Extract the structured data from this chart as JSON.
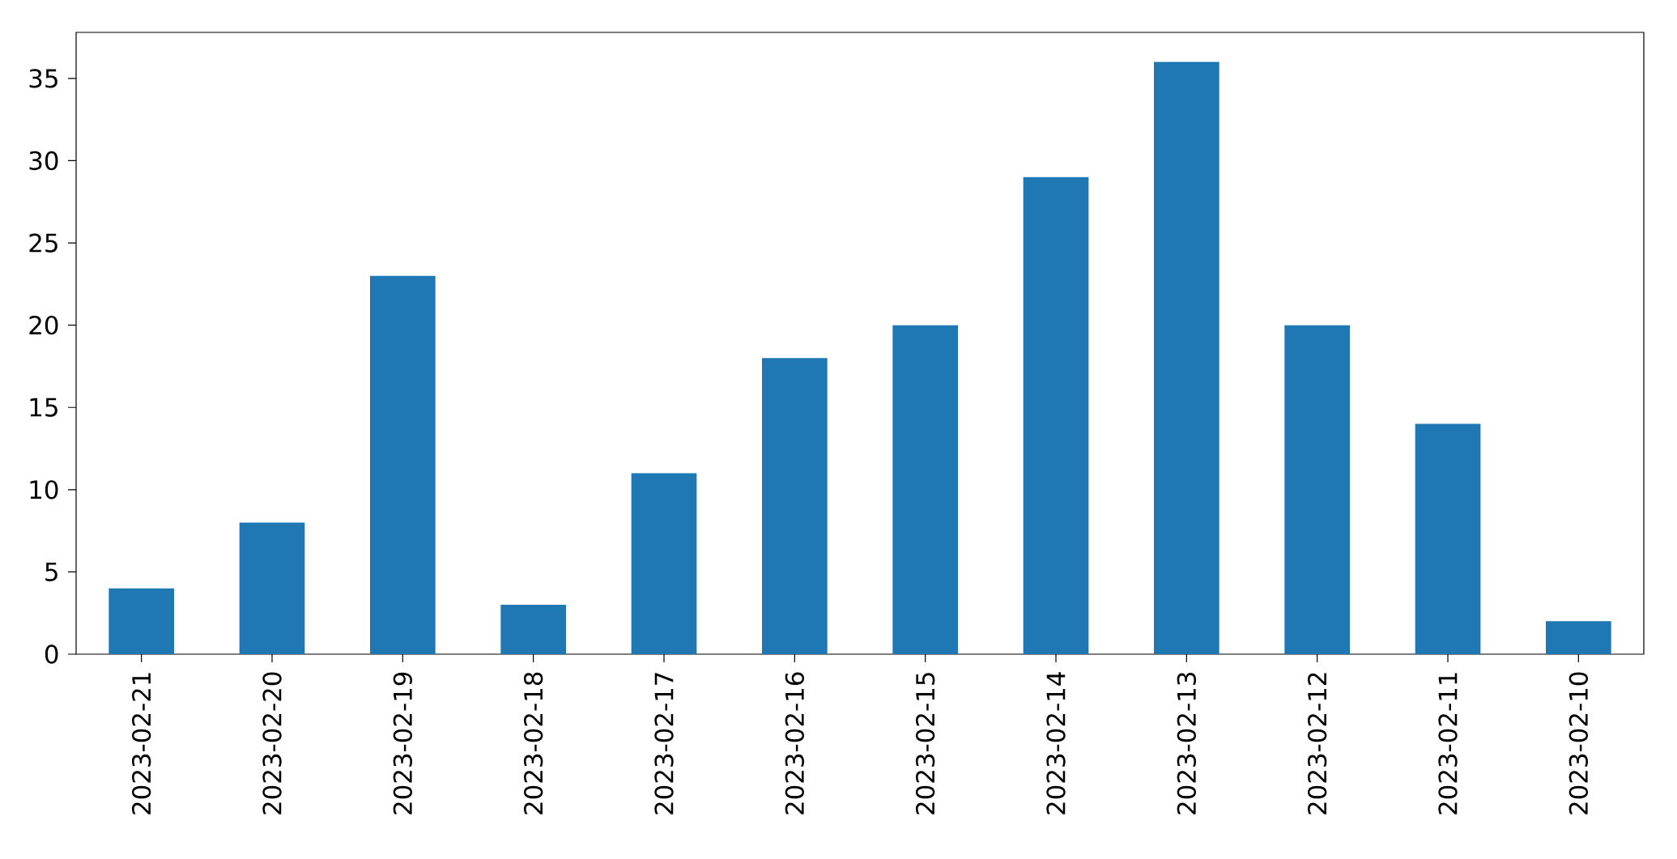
{
  "chart_data": {
    "type": "bar",
    "categories": [
      "2023-02-21",
      "2023-02-20",
      "2023-02-19",
      "2023-02-18",
      "2023-02-17",
      "2023-02-16",
      "2023-02-15",
      "2023-02-14",
      "2023-02-13",
      "2023-02-12",
      "2023-02-11",
      "2023-02-10"
    ],
    "values": [
      4,
      8,
      23,
      3,
      11,
      18,
      20,
      29,
      36,
      20,
      14,
      2
    ],
    "color": "#1f77b4",
    "ylim": [
      0,
      37.8
    ],
    "yticks": [
      0,
      5,
      10,
      15,
      20,
      25,
      30,
      35
    ]
  }
}
